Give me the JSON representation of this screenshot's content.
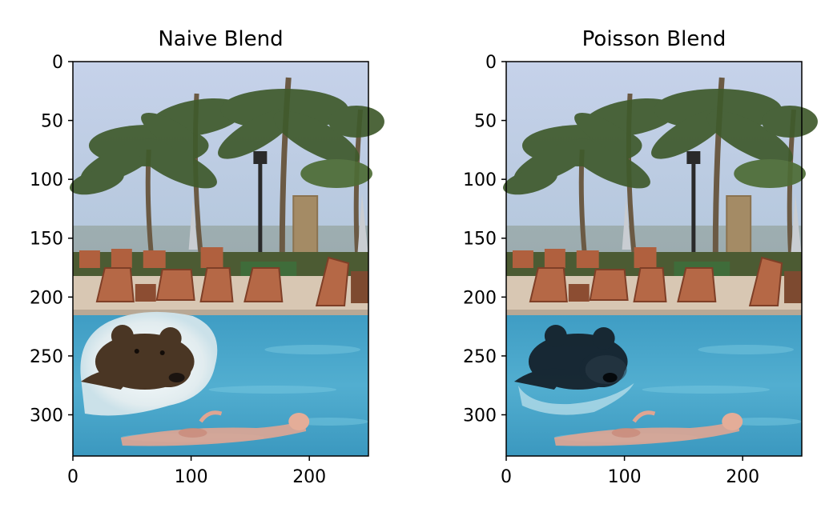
{
  "chart_data": [
    {
      "type": "image",
      "title": "Naive Blend",
      "xlim": [
        0,
        250
      ],
      "ylim": [
        0,
        335
      ],
      "x_ticks": [
        0,
        100,
        200
      ],
      "y_ticks": [
        0,
        50,
        100,
        150,
        200,
        250,
        300
      ],
      "y_inverted": true,
      "image_content": "beach resort pool with palm trees and lounge chairs; bear head pasted with a visible light halo around it; person floating in the water",
      "grid": false,
      "legend": "none"
    },
    {
      "type": "image",
      "title": "Poisson Blend",
      "xlim": [
        0,
        250
      ],
      "ylim": [
        0,
        335
      ],
      "x_ticks": [
        0,
        100,
        200
      ],
      "y_ticks": [
        0,
        50,
        100,
        150,
        200,
        250,
        300
      ],
      "y_inverted": true,
      "image_content": "same beach resort pool scene; bear head blended seamlessly, darker and tinted to match the water; person floating in the water",
      "grid": false,
      "legend": "none"
    }
  ],
  "colors": {
    "sky": "#b9c9e2",
    "palm_green": "#3f5a2c",
    "water": "#49a6c9",
    "deck": "#d8c7b3",
    "chair": "#b0603e",
    "bear_naive": "#4a3624",
    "bear_poisson": "#15222c",
    "halo": "#eef2f4"
  }
}
